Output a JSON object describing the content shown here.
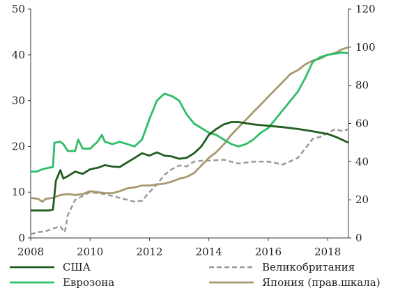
{
  "chart_data": {
    "type": "line",
    "title": "",
    "xlabel": "",
    "ylabel": "",
    "x_range": [
      2008,
      2018.7
    ],
    "x_ticks": [
      "2008",
      "2010",
      "2012",
      "2014",
      "2016",
      "2018"
    ],
    "ylim_left": [
      0,
      50
    ],
    "ylim_right": [
      0,
      120
    ],
    "y_ticks_left": [
      "0",
      "10",
      "20",
      "30",
      "40",
      "50"
    ],
    "y_ticks_right": [
      "0",
      "20",
      "40",
      "60",
      "80",
      "100",
      "120"
    ],
    "grid": false,
    "legend_position": "bottom",
    "series": [
      {
        "name": "США",
        "axis": "left",
        "color": "#1f5c1f",
        "dash": "solid",
        "points": [
          [
            2008.0,
            6
          ],
          [
            2008.3,
            6
          ],
          [
            2008.6,
            6
          ],
          [
            2008.75,
            6.2
          ],
          [
            2008.85,
            12.5
          ],
          [
            2009.0,
            14.8
          ],
          [
            2009.1,
            13
          ],
          [
            2009.25,
            13.5
          ],
          [
            2009.5,
            14.5
          ],
          [
            2009.75,
            14
          ],
          [
            2010.0,
            15
          ],
          [
            2010.25,
            15.3
          ],
          [
            2010.5,
            15.9
          ],
          [
            2010.75,
            15.6
          ],
          [
            2011.0,
            15.5
          ],
          [
            2011.25,
            16.5
          ],
          [
            2011.5,
            17.5
          ],
          [
            2011.75,
            18.5
          ],
          [
            2012.0,
            18
          ],
          [
            2012.25,
            18.7
          ],
          [
            2012.5,
            18
          ],
          [
            2012.75,
            17.8
          ],
          [
            2013.0,
            17.3
          ],
          [
            2013.25,
            17.5
          ],
          [
            2013.5,
            18.5
          ],
          [
            2013.75,
            20
          ],
          [
            2014.0,
            22.5
          ],
          [
            2014.25,
            23.8
          ],
          [
            2014.5,
            24.8
          ],
          [
            2014.75,
            25.3
          ],
          [
            2015.0,
            25.3
          ],
          [
            2015.5,
            24.8
          ],
          [
            2016.0,
            24.5
          ],
          [
            2016.5,
            24.2
          ],
          [
            2017.0,
            23.8
          ],
          [
            2017.5,
            23.3
          ],
          [
            2018.0,
            22.7
          ],
          [
            2018.3,
            22
          ],
          [
            2018.7,
            20.8
          ]
        ]
      },
      {
        "name": "Великобритания",
        "axis": "right",
        "color": "#999999",
        "dash": "dashed",
        "points": [
          [
            2008.0,
            2
          ],
          [
            2008.25,
            3
          ],
          [
            2008.5,
            3.5
          ],
          [
            2008.75,
            5
          ],
          [
            2009.0,
            6
          ],
          [
            2009.15,
            3
          ],
          [
            2009.25,
            12
          ],
          [
            2009.5,
            20
          ],
          [
            2009.75,
            22
          ],
          [
            2010.0,
            24
          ],
          [
            2010.5,
            23
          ],
          [
            2011.0,
            21
          ],
          [
            2011.5,
            19
          ],
          [
            2011.75,
            19.5
          ],
          [
            2012.0,
            24
          ],
          [
            2012.25,
            28
          ],
          [
            2012.5,
            33
          ],
          [
            2012.75,
            36
          ],
          [
            2013.0,
            38
          ],
          [
            2013.25,
            37.5
          ],
          [
            2013.5,
            40
          ],
          [
            2013.75,
            40.5
          ],
          [
            2014.0,
            40.5
          ],
          [
            2014.5,
            41
          ],
          [
            2015.0,
            39
          ],
          [
            2015.5,
            40
          ],
          [
            2016.0,
            40
          ],
          [
            2016.5,
            38.5
          ],
          [
            2017.0,
            42
          ],
          [
            2017.25,
            47
          ],
          [
            2017.5,
            52
          ],
          [
            2017.75,
            53
          ],
          [
            2018.0,
            55
          ],
          [
            2018.25,
            57
          ],
          [
            2018.5,
            56
          ],
          [
            2018.7,
            57
          ]
        ]
      },
      {
        "name": "Еврозона",
        "axis": "left",
        "color": "#2ebd66",
        "dash": "solid",
        "points": [
          [
            2008.0,
            14.5
          ],
          [
            2008.2,
            14.5
          ],
          [
            2008.4,
            15
          ],
          [
            2008.6,
            15.3
          ],
          [
            2008.75,
            15.5
          ],
          [
            2008.8,
            20.8
          ],
          [
            2009.0,
            21
          ],
          [
            2009.1,
            20.5
          ],
          [
            2009.25,
            19
          ],
          [
            2009.5,
            19
          ],
          [
            2009.6,
            21.5
          ],
          [
            2009.75,
            19.5
          ],
          [
            2010.0,
            19.5
          ],
          [
            2010.25,
            21
          ],
          [
            2010.4,
            22.5
          ],
          [
            2010.5,
            21
          ],
          [
            2010.75,
            20.5
          ],
          [
            2011.0,
            21
          ],
          [
            2011.5,
            20
          ],
          [
            2011.75,
            21.5
          ],
          [
            2012.0,
            26
          ],
          [
            2012.25,
            30
          ],
          [
            2012.5,
            31.5
          ],
          [
            2012.75,
            31
          ],
          [
            2013.0,
            30
          ],
          [
            2013.25,
            27
          ],
          [
            2013.5,
            25
          ],
          [
            2013.75,
            24
          ],
          [
            2014.0,
            23
          ],
          [
            2014.25,
            22.5
          ],
          [
            2014.5,
            21.5
          ],
          [
            2014.75,
            20.5
          ],
          [
            2015.0,
            20
          ],
          [
            2015.25,
            20.5
          ],
          [
            2015.5,
            21.5
          ],
          [
            2015.75,
            23
          ],
          [
            2016.0,
            24
          ],
          [
            2016.25,
            26
          ],
          [
            2016.5,
            28
          ],
          [
            2016.75,
            30
          ],
          [
            2017.0,
            32
          ],
          [
            2017.25,
            35
          ],
          [
            2017.5,
            38.5
          ],
          [
            2017.75,
            39.5
          ],
          [
            2018.0,
            40
          ],
          [
            2018.5,
            40.5
          ],
          [
            2018.7,
            40.3
          ]
        ]
      },
      {
        "name": "Япония (прав.шкала)",
        "axis": "right",
        "color": "#a89870",
        "dash": "solid",
        "points": [
          [
            2008.0,
            21
          ],
          [
            2008.25,
            20.5
          ],
          [
            2008.4,
            19
          ],
          [
            2008.5,
            20.5
          ],
          [
            2008.75,
            21
          ],
          [
            2009.0,
            22.5
          ],
          [
            2009.25,
            23
          ],
          [
            2009.5,
            22.5
          ],
          [
            2009.75,
            23
          ],
          [
            2010.0,
            24.5
          ],
          [
            2010.25,
            24
          ],
          [
            2010.5,
            23.5
          ],
          [
            2010.75,
            23.5
          ],
          [
            2011.0,
            24.5
          ],
          [
            2011.25,
            26
          ],
          [
            2011.5,
            26.5
          ],
          [
            2011.75,
            27.5
          ],
          [
            2012.0,
            27.5
          ],
          [
            2012.25,
            28
          ],
          [
            2012.5,
            28.5
          ],
          [
            2012.75,
            29.5
          ],
          [
            2013.0,
            31
          ],
          [
            2013.25,
            32
          ],
          [
            2013.5,
            34
          ],
          [
            2013.75,
            38
          ],
          [
            2014.0,
            42
          ],
          [
            2014.25,
            45
          ],
          [
            2014.5,
            49
          ],
          [
            2014.75,
            54
          ],
          [
            2015.0,
            58
          ],
          [
            2015.25,
            62
          ],
          [
            2015.5,
            66
          ],
          [
            2015.75,
            70
          ],
          [
            2016.0,
            74
          ],
          [
            2016.25,
            78
          ],
          [
            2016.5,
            82
          ],
          [
            2016.75,
            86
          ],
          [
            2017.0,
            88
          ],
          [
            2017.25,
            91
          ],
          [
            2017.5,
            93
          ],
          [
            2017.75,
            94
          ],
          [
            2018.0,
            96
          ],
          [
            2018.25,
            97
          ],
          [
            2018.5,
            99
          ],
          [
            2018.7,
            100
          ]
        ]
      }
    ]
  }
}
